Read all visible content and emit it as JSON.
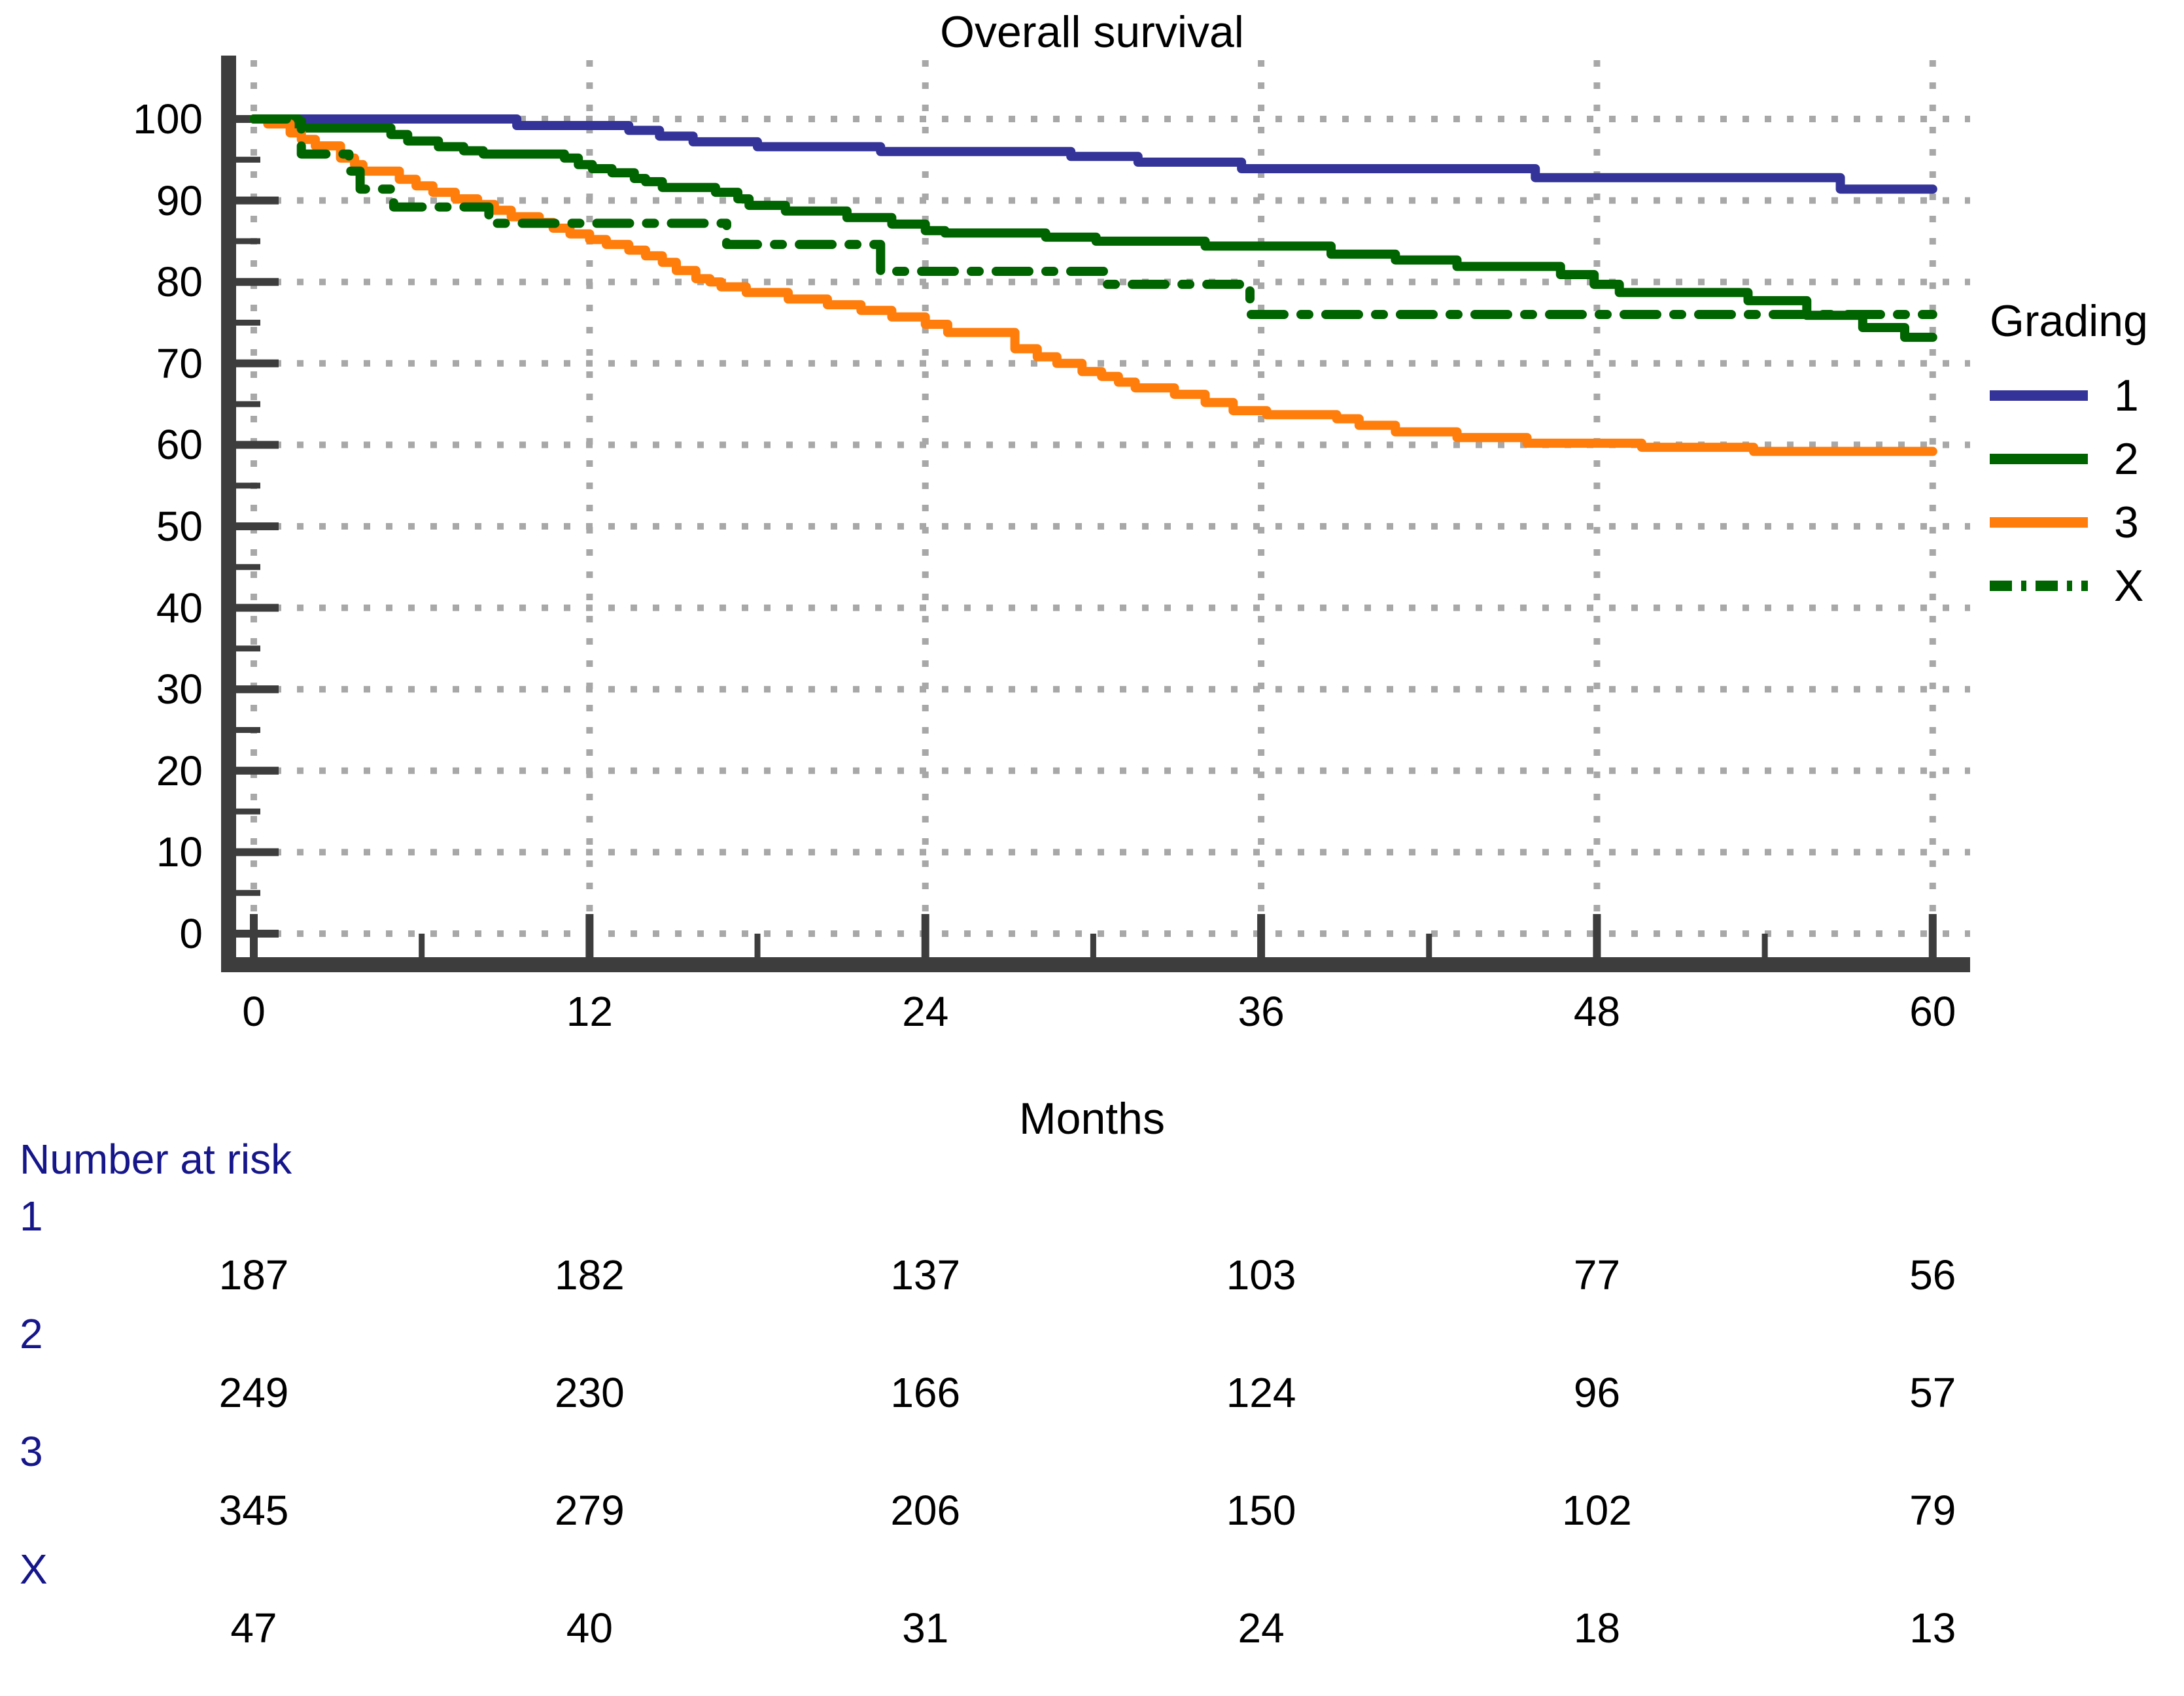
{
  "chart_data": {
    "type": "line",
    "subtype": "kaplan-meier-step",
    "title": "Overall survival",
    "xlabel": "Months",
    "ylabel": "",
    "xlim": [
      0,
      60
    ],
    "ylim": [
      0,
      100
    ],
    "x_ticks": [
      0,
      12,
      24,
      36,
      48,
      60
    ],
    "y_ticks": [
      0,
      10,
      20,
      30,
      40,
      50,
      60,
      70,
      80,
      90,
      100
    ],
    "grid": "dotted-major-both-axes",
    "colors": {
      "grading1": "#333399",
      "grading2": "#006400",
      "grading3": "#FF7D0B",
      "gradingX": "#006400",
      "gridline": "#A8A8A8",
      "axis": "#3D3D3D",
      "risk_text": "#16168B",
      "tick_text": "#000000"
    },
    "legend": {
      "title": "Grading",
      "position": "right",
      "items": [
        {
          "label": "1",
          "series": "1"
        },
        {
          "label": "2",
          "series": "2"
        },
        {
          "label": "3",
          "series": "3"
        },
        {
          "label": "X",
          "series": "X"
        }
      ]
    },
    "series": [
      {
        "name": "1",
        "color": "#333399",
        "style": "solid",
        "points_month_percent": [
          [
            0,
            100
          ],
          [
            9.4,
            99.2
          ],
          [
            13.4,
            98.6
          ],
          [
            14.5,
            97.9
          ],
          [
            15.7,
            97.2
          ],
          [
            18,
            96.6
          ],
          [
            22.4,
            96.0
          ],
          [
            29.2,
            95.4
          ],
          [
            31.6,
            94.7
          ],
          [
            35.3,
            93.9
          ],
          [
            45.8,
            92.8
          ],
          [
            56.7,
            91.4
          ],
          [
            60,
            91.4
          ]
        ]
      },
      {
        "name": "2",
        "color": "#006400",
        "style": "solid",
        "points_month_percent": [
          [
            0,
            100
          ],
          [
            1.6,
            98.9
          ],
          [
            4.9,
            98.1
          ],
          [
            5.5,
            97.3
          ],
          [
            6.6,
            96.6
          ],
          [
            7.5,
            96.1
          ],
          [
            8.2,
            95.7
          ],
          [
            11.1,
            95.2
          ],
          [
            11.6,
            94.4
          ],
          [
            12.1,
            93.9
          ],
          [
            12.8,
            93.4
          ],
          [
            13.6,
            92.7
          ],
          [
            14.0,
            92.3
          ],
          [
            14.6,
            91.6
          ],
          [
            16.5,
            91.0
          ],
          [
            17.3,
            90.2
          ],
          [
            17.7,
            89.4
          ],
          [
            19.0,
            88.7
          ],
          [
            21.2,
            87.9
          ],
          [
            22.8,
            87.1
          ],
          [
            24.0,
            86.3
          ],
          [
            24.7,
            86.0
          ],
          [
            28.3,
            85.5
          ],
          [
            30.1,
            85.0
          ],
          [
            34.0,
            84.4
          ],
          [
            38.5,
            83.4
          ],
          [
            40.8,
            82.7
          ],
          [
            43.0,
            81.9
          ],
          [
            46.7,
            80.9
          ],
          [
            47.9,
            79.7
          ],
          [
            48.8,
            78.7
          ],
          [
            53.4,
            77.7
          ],
          [
            55.5,
            75.9
          ],
          [
            57.5,
            74.4
          ],
          [
            59.0,
            73.2
          ],
          [
            60,
            73.2
          ]
        ]
      },
      {
        "name": "3",
        "color": "#FF7D0B",
        "style": "solid",
        "points_month_percent": [
          [
            0,
            100
          ],
          [
            0.5,
            99.4
          ],
          [
            1.3,
            98.3
          ],
          [
            1.7,
            97.5
          ],
          [
            2.2,
            96.7
          ],
          [
            3.1,
            95.2
          ],
          [
            3.6,
            94.4
          ],
          [
            3.9,
            93.6
          ],
          [
            5.2,
            92.6
          ],
          [
            5.8,
            91.8
          ],
          [
            6.4,
            91.0
          ],
          [
            7.2,
            90.2
          ],
          [
            8.0,
            89.5
          ],
          [
            8.6,
            88.8
          ],
          [
            9.2,
            88.0
          ],
          [
            10.2,
            87.3
          ],
          [
            10.7,
            86.6
          ],
          [
            11.3,
            85.9
          ],
          [
            12.0,
            85.2
          ],
          [
            12.6,
            84.6
          ],
          [
            13.4,
            83.9
          ],
          [
            14.0,
            83.2
          ],
          [
            14.6,
            82.4
          ],
          [
            15.1,
            81.4
          ],
          [
            15.8,
            80.4
          ],
          [
            16.3,
            80.0
          ],
          [
            16.7,
            79.4
          ],
          [
            17.6,
            78.7
          ],
          [
            19.1,
            77.9
          ],
          [
            20.5,
            77.2
          ],
          [
            21.7,
            76.5
          ],
          [
            22.8,
            75.7
          ],
          [
            24.0,
            74.8
          ],
          [
            24.8,
            73.8
          ],
          [
            27.2,
            71.8
          ],
          [
            28.0,
            70.8
          ],
          [
            28.7,
            70.0
          ],
          [
            29.6,
            69.0
          ],
          [
            30.3,
            68.4
          ],
          [
            30.9,
            67.7
          ],
          [
            31.5,
            67.0
          ],
          [
            32.9,
            66.2
          ],
          [
            34.0,
            65.2
          ],
          [
            35.0,
            64.2
          ],
          [
            36.2,
            63.7
          ],
          [
            38.7,
            63.2
          ],
          [
            39.5,
            62.4
          ],
          [
            40.8,
            61.6
          ],
          [
            43.0,
            60.9
          ],
          [
            45.5,
            60.2
          ],
          [
            49.6,
            59.7
          ],
          [
            53.6,
            59.2
          ],
          [
            60,
            59.2
          ]
        ]
      },
      {
        "name": "X",
        "color": "#006400",
        "style": "dashdot",
        "points_month_percent": [
          [
            0,
            100
          ],
          [
            1.7,
            95.7
          ],
          [
            3.4,
            93.6
          ],
          [
            3.8,
            91.4
          ],
          [
            5.0,
            89.2
          ],
          [
            8.4,
            87.2
          ],
          [
            16.9,
            84.6
          ],
          [
            22.4,
            81.3
          ],
          [
            30.4,
            79.7
          ],
          [
            35.6,
            76.0
          ],
          [
            60,
            76.0
          ]
        ]
      }
    ],
    "risk_table": {
      "header": "Number at risk",
      "timepoints": [
        0,
        12,
        24,
        36,
        48,
        60
      ],
      "groups": [
        {
          "label": "1",
          "values": [
            187,
            182,
            137,
            103,
            77,
            56
          ]
        },
        {
          "label": "2",
          "values": [
            249,
            230,
            166,
            124,
            96,
            57
          ]
        },
        {
          "label": "3",
          "values": [
            345,
            279,
            206,
            150,
            102,
            79
          ]
        },
        {
          "label": "X",
          "values": [
            47,
            40,
            31,
            24,
            18,
            13
          ]
        }
      ]
    }
  }
}
